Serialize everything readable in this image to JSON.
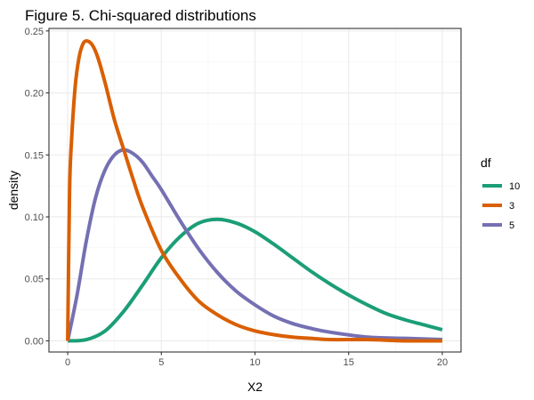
{
  "chart_data": {
    "type": "line",
    "title": "Figure 5. Chi-squared distributions",
    "xlabel": "X2",
    "ylabel": "density",
    "xlim": [
      -1,
      21
    ],
    "ylim": [
      -0.009,
      0.252
    ],
    "x_ticks": [
      0,
      5,
      10,
      15,
      20
    ],
    "x_tick_labels": [
      "0",
      "5",
      "10",
      "15",
      "20"
    ],
    "y_ticks": [
      0,
      0.05,
      0.1,
      0.15,
      0.2,
      0.25
    ],
    "y_tick_labels": [
      "0.00",
      "0.05",
      "0.10",
      "0.15",
      "0.20",
      "0.25"
    ],
    "grid": true,
    "legend": {
      "title": "df",
      "position": "right",
      "entries": [
        {
          "label": "10",
          "color": "#1b9e77"
        },
        {
          "label": "3",
          "color": "#d95f02"
        },
        {
          "label": "5",
          "color": "#7570b3"
        }
      ]
    },
    "series": [
      {
        "name": "10",
        "color": "#1b9e77",
        "x": [
          0,
          1,
          2,
          3,
          4,
          5,
          6,
          7,
          8,
          9,
          10,
          11,
          12,
          13,
          14,
          15,
          16,
          17,
          18,
          19,
          20
        ],
        "values": [
          0.0,
          0.001,
          0.008,
          0.024,
          0.045,
          0.067,
          0.084,
          0.095,
          0.098,
          0.095,
          0.088,
          0.078,
          0.067,
          0.056,
          0.046,
          0.037,
          0.029,
          0.022,
          0.017,
          0.013,
          0.009
        ]
      },
      {
        "name": "3",
        "color": "#d95f02",
        "x": [
          0,
          0.1,
          0.2,
          0.4,
          0.6,
          0.8,
          1,
          1.3,
          1.6,
          2,
          2.5,
          3,
          3.5,
          4,
          5,
          6,
          7,
          8,
          9,
          10,
          11,
          12,
          13,
          14,
          16,
          18,
          20
        ],
        "values": [
          0.0,
          0.12,
          0.16,
          0.205,
          0.228,
          0.239,
          0.242,
          0.239,
          0.229,
          0.208,
          0.178,
          0.154,
          0.13,
          0.108,
          0.073,
          0.05,
          0.032,
          0.021,
          0.013,
          0.008,
          0.005,
          0.003,
          0.002,
          0.001,
          0.001,
          0.0,
          0.0
        ]
      },
      {
        "name": "5",
        "color": "#7570b3",
        "x": [
          0,
          0.5,
          1,
          1.5,
          2,
          2.5,
          3,
          3.5,
          4,
          4.5,
          5,
          6,
          7,
          8,
          9,
          10,
          11,
          12,
          13,
          14,
          16,
          18,
          20
        ],
        "values": [
          0.0,
          0.037,
          0.081,
          0.116,
          0.138,
          0.15,
          0.154,
          0.151,
          0.144,
          0.133,
          0.122,
          0.097,
          0.074,
          0.055,
          0.04,
          0.029,
          0.02,
          0.014,
          0.01,
          0.007,
          0.003,
          0.002,
          0.001
        ]
      }
    ]
  }
}
